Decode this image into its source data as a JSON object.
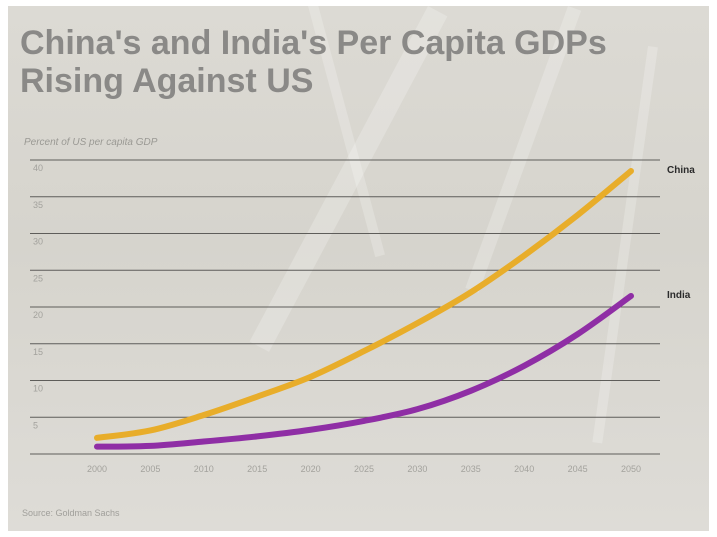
{
  "title_line1": "China's and India's Per Capita GDPs",
  "title_line2": "Rising Against US",
  "ylabel": "Percent of US per capita GDP",
  "source": "Source: Goldman Sachs",
  "chart_data": {
    "type": "line",
    "title": "China's and India's Per Capita GDPs Rising Against US",
    "ylabel": "Percent of US per capita GDP",
    "xlabel": "",
    "x": [
      2000,
      2005,
      2010,
      2015,
      2020,
      2025,
      2030,
      2035,
      2040,
      2045,
      2050
    ],
    "x_tick_labels": [
      "2000",
      "2005",
      "2010",
      "2015",
      "2020",
      "2025",
      "2030",
      "2035",
      "2040",
      "2045",
      "2050"
    ],
    "y_ticks": [
      5,
      10,
      15,
      20,
      25,
      30,
      35,
      40
    ],
    "ylim": [
      0,
      40
    ],
    "grid": "horizontal",
    "series": [
      {
        "name": "China",
        "color": "#e8ad2a",
        "values": [
          2.2,
          3.2,
          5.3,
          7.8,
          10.5,
          14.0,
          17.8,
          22.0,
          27.0,
          32.5,
          38.5
        ]
      },
      {
        "name": "India",
        "color": "#8f2ea5",
        "values": [
          1.0,
          1.1,
          1.7,
          2.4,
          3.3,
          4.5,
          6.1,
          8.6,
          12.0,
          16.3,
          21.5
        ]
      }
    ]
  }
}
